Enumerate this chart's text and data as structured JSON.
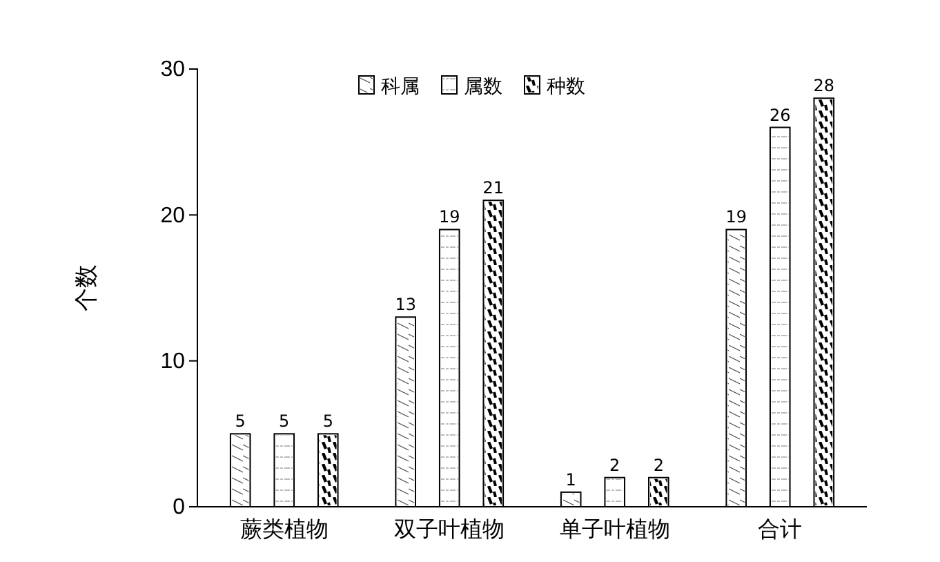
{
  "chart_data": {
    "type": "bar",
    "ylabel": "个数",
    "categories": [
      "蕨类植物",
      "双子叶植物",
      "单子叶植物",
      "合计"
    ],
    "series": [
      {
        "name": "科属",
        "color": "#ffffff",
        "values": [
          5,
          13,
          1,
          19
        ]
      },
      {
        "name": "属数",
        "color": "#ffffff",
        "values": [
          5,
          19,
          2,
          26
        ]
      },
      {
        "name": "种数",
        "color": "#ffffff",
        "values": [
          5,
          21,
          2,
          28
        ]
      }
    ],
    "ylim": [
      0,
      30
    ],
    "yticks": [
      0,
      10,
      20,
      30
    ],
    "grid": false,
    "legend": "top",
    "data_labels": true
  }
}
